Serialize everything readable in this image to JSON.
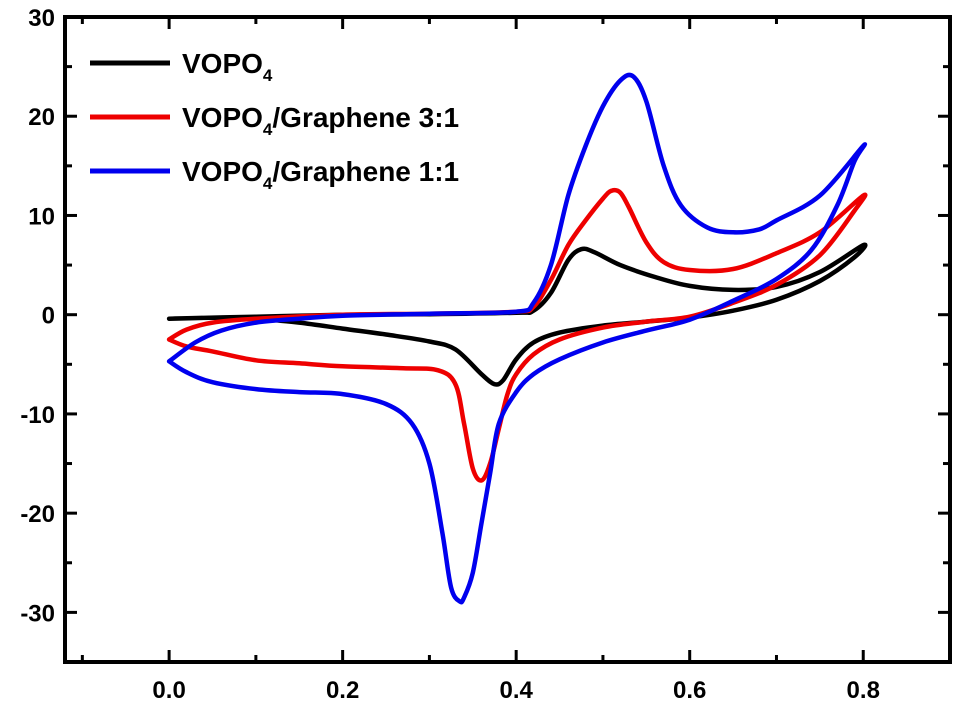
{
  "chart_data": {
    "type": "line",
    "title": "",
    "xlabel": "",
    "ylabel": "",
    "xlim": [
      -0.12,
      0.9
    ],
    "ylim": [
      -35,
      30
    ],
    "xticks": [
      "0.0",
      "0.2",
      "0.4",
      "0.6",
      "0.8"
    ],
    "xtick_values": [
      0.0,
      0.2,
      0.4,
      0.6,
      0.8
    ],
    "yticks": [
      "30",
      "20",
      "10",
      "0",
      "-10",
      "-20",
      "-30"
    ],
    "ytick_values": [
      30,
      20,
      10,
      0,
      -10,
      -20,
      -30
    ],
    "grid": false,
    "legend_position": "top-left",
    "series": [
      {
        "label": {
          "main": "VOPO",
          "sub": "4",
          "rest": ""
        },
        "color": "#000000",
        "points": [
          [
            0.0,
            -0.4
          ],
          [
            0.1,
            -0.2
          ],
          [
            0.2,
            0.0
          ],
          [
            0.3,
            0.05
          ],
          [
            0.4,
            0.2
          ],
          [
            0.42,
            0.4
          ],
          [
            0.44,
            2.2
          ],
          [
            0.46,
            5.5
          ],
          [
            0.475,
            6.6
          ],
          [
            0.49,
            6.3
          ],
          [
            0.52,
            5.0
          ],
          [
            0.56,
            3.8
          ],
          [
            0.6,
            2.9
          ],
          [
            0.65,
            2.5
          ],
          [
            0.7,
            2.8
          ],
          [
            0.75,
            4.3
          ],
          [
            0.8,
            7.0
          ],
          [
            0.79,
            5.8
          ],
          [
            0.75,
            3.4
          ],
          [
            0.7,
            1.5
          ],
          [
            0.65,
            0.4
          ],
          [
            0.6,
            -0.3
          ],
          [
            0.55,
            -0.7
          ],
          [
            0.5,
            -1.1
          ],
          [
            0.45,
            -1.8
          ],
          [
            0.42,
            -2.8
          ],
          [
            0.4,
            -4.5
          ],
          [
            0.385,
            -6.6
          ],
          [
            0.375,
            -7.0
          ],
          [
            0.36,
            -6.0
          ],
          [
            0.33,
            -3.5
          ],
          [
            0.3,
            -2.7
          ],
          [
            0.25,
            -2.0
          ],
          [
            0.2,
            -1.4
          ],
          [
            0.15,
            -0.8
          ],
          [
            0.1,
            -0.4
          ],
          [
            0.05,
            -0.3
          ],
          [
            0.0,
            -0.4
          ]
        ]
      },
      {
        "label": {
          "main": "VOPO",
          "sub": "4",
          "rest": "/Graphene 3:1"
        },
        "color": "#ee0000",
        "points": [
          [
            0.0,
            -2.5
          ],
          [
            0.02,
            -1.5
          ],
          [
            0.05,
            -0.8
          ],
          [
            0.1,
            -0.4
          ],
          [
            0.2,
            0.0
          ],
          [
            0.3,
            0.1
          ],
          [
            0.4,
            0.3
          ],
          [
            0.42,
            0.8
          ],
          [
            0.44,
            3.5
          ],
          [
            0.46,
            7.0
          ],
          [
            0.48,
            9.5
          ],
          [
            0.5,
            11.7
          ],
          [
            0.51,
            12.5
          ],
          [
            0.52,
            12.3
          ],
          [
            0.53,
            10.8
          ],
          [
            0.55,
            7.3
          ],
          [
            0.57,
            5.3
          ],
          [
            0.6,
            4.5
          ],
          [
            0.65,
            4.6
          ],
          [
            0.7,
            6.2
          ],
          [
            0.75,
            8.3
          ],
          [
            0.8,
            12.0
          ],
          [
            0.79,
            10.5
          ],
          [
            0.75,
            6.0
          ],
          [
            0.7,
            3.0
          ],
          [
            0.65,
            1.2
          ],
          [
            0.6,
            -0.2
          ],
          [
            0.55,
            -0.7
          ],
          [
            0.5,
            -1.3
          ],
          [
            0.45,
            -2.5
          ],
          [
            0.42,
            -4.0
          ],
          [
            0.4,
            -6.0
          ],
          [
            0.39,
            -8.0
          ],
          [
            0.38,
            -11.5
          ],
          [
            0.37,
            -15.0
          ],
          [
            0.36,
            -16.7
          ],
          [
            0.35,
            -15.5
          ],
          [
            0.34,
            -11.0
          ],
          [
            0.33,
            -7.0
          ],
          [
            0.31,
            -5.6
          ],
          [
            0.27,
            -5.4
          ],
          [
            0.2,
            -5.2
          ],
          [
            0.15,
            -4.9
          ],
          [
            0.1,
            -4.6
          ],
          [
            0.05,
            -3.7
          ],
          [
            0.02,
            -3.2
          ],
          [
            0.0,
            -2.5
          ]
        ]
      },
      {
        "label": {
          "main": "VOPO",
          "sub": "4",
          "rest": "/Graphene 1:1"
        },
        "color": "#0000ee",
        "points": [
          [
            0.0,
            -4.7
          ],
          [
            0.03,
            -2.8
          ],
          [
            0.06,
            -1.6
          ],
          [
            0.1,
            -0.8
          ],
          [
            0.15,
            -0.4
          ],
          [
            0.2,
            -0.1
          ],
          [
            0.3,
            0.1
          ],
          [
            0.4,
            0.3
          ],
          [
            0.42,
            1.2
          ],
          [
            0.44,
            5.0
          ],
          [
            0.46,
            12.0
          ],
          [
            0.48,
            17.0
          ],
          [
            0.5,
            21.0
          ],
          [
            0.52,
            23.6
          ],
          [
            0.535,
            24.0
          ],
          [
            0.55,
            21.5
          ],
          [
            0.57,
            15.0
          ],
          [
            0.59,
            11.0
          ],
          [
            0.62,
            8.8
          ],
          [
            0.65,
            8.3
          ],
          [
            0.68,
            8.6
          ],
          [
            0.7,
            9.5
          ],
          [
            0.75,
            12.0
          ],
          [
            0.8,
            17.0
          ],
          [
            0.79,
            15.5
          ],
          [
            0.77,
            11.0
          ],
          [
            0.74,
            6.5
          ],
          [
            0.7,
            3.6
          ],
          [
            0.65,
            1.4
          ],
          [
            0.6,
            -0.5
          ],
          [
            0.55,
            -1.6
          ],
          [
            0.5,
            -2.8
          ],
          [
            0.45,
            -4.5
          ],
          [
            0.42,
            -6.0
          ],
          [
            0.4,
            -7.8
          ],
          [
            0.38,
            -11.0
          ],
          [
            0.37,
            -16.0
          ],
          [
            0.36,
            -21.0
          ],
          [
            0.35,
            -26.0
          ],
          [
            0.34,
            -28.5
          ],
          [
            0.335,
            -28.9
          ],
          [
            0.325,
            -27.5
          ],
          [
            0.315,
            -22.0
          ],
          [
            0.3,
            -15.0
          ],
          [
            0.28,
            -11.0
          ],
          [
            0.25,
            -9.0
          ],
          [
            0.2,
            -8.0
          ],
          [
            0.15,
            -7.8
          ],
          [
            0.1,
            -7.5
          ],
          [
            0.05,
            -6.8
          ],
          [
            0.02,
            -5.8
          ],
          [
            0.0,
            -4.7
          ]
        ]
      }
    ]
  }
}
